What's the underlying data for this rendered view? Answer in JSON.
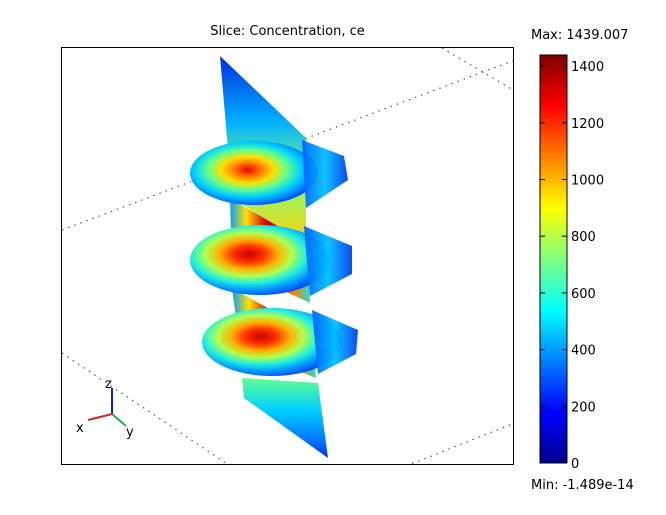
{
  "chart_data": {
    "type": "heatmap",
    "title": "Slice: Concentration, ce",
    "variable": "ce",
    "max_label": "Max: 1439.007",
    "min_label": "Min: -1.489e-14",
    "max_value": 1439.007,
    "min_value": -1.489e-14,
    "colorbar": {
      "range": [
        0,
        1439.007
      ],
      "ticks": [
        0,
        200,
        400,
        600,
        800,
        1000,
        1200,
        1400
      ],
      "tick_labels": [
        "0",
        "200",
        "400",
        "600",
        "800",
        "1000",
        "1200",
        "1400"
      ],
      "colormap": "jet"
    },
    "axis_triad": [
      {
        "label": "z",
        "color": "#1020d0"
      },
      {
        "label": "x",
        "color": "#e02020"
      },
      {
        "label": "y",
        "color": "#20b040"
      }
    ]
  }
}
